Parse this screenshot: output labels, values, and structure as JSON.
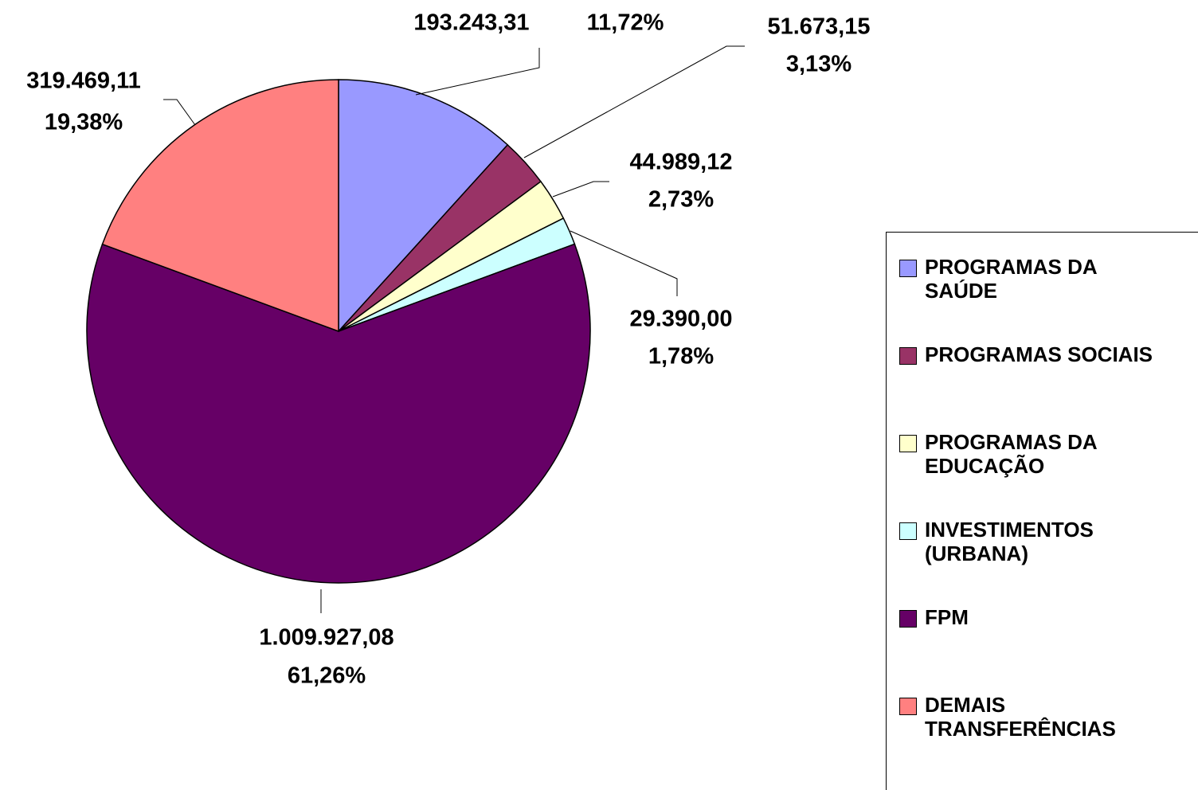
{
  "chart_data": {
    "type": "pie",
    "categories": [
      "PROGRAMAS DA SAÚDE",
      "PROGRAMAS SOCIAIS",
      "PROGRAMAS DA EDUCAÇÃO",
      "INVESTIMENTOS (URBANA)",
      "FPM",
      "DEMAIS TRANSFERÊNCIAS"
    ],
    "values": [
      193243.31,
      51673.15,
      44989.12,
      29390.0,
      1009927.08,
      319469.11
    ],
    "value_labels": [
      "193.243,31",
      "51.673,15",
      "44.989,12",
      "29.390,00",
      "1.009.927,08",
      "319.469,11"
    ],
    "percentages": [
      11.72,
      3.13,
      2.73,
      1.78,
      61.26,
      19.38
    ],
    "percentage_labels": [
      "11,72%",
      "3,13%",
      "2,73%",
      "1,78%",
      "61,26%",
      "19,38%"
    ],
    "colors": [
      "#9999ff",
      "#993366",
      "#ffffcc",
      "#ccffff",
      "#660066",
      "#ff8080"
    ],
    "legend": "right"
  }
}
